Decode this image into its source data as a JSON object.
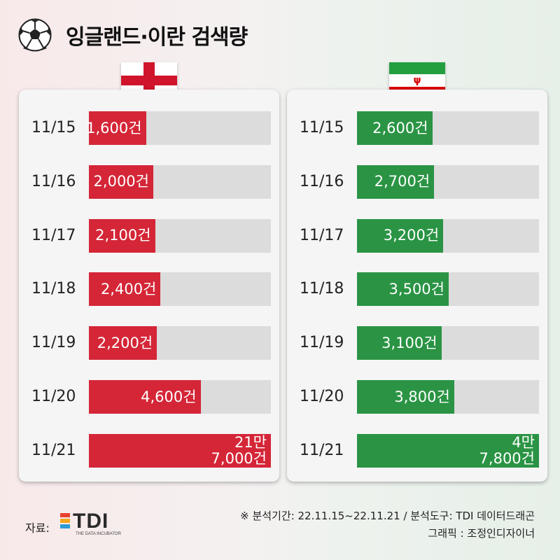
{
  "title": "잉글랜드·이란 검색량",
  "colors": {
    "england": "#d42637",
    "iran": "#2a9444",
    "track": "#dcdcdc"
  },
  "chart_data": [
    {
      "type": "bar",
      "orientation": "horizontal",
      "team": "england",
      "categories": [
        "11/15",
        "11/16",
        "11/17",
        "11/18",
        "11/19",
        "11/20",
        "11/21"
      ],
      "values": [
        1600,
        2000,
        2100,
        2400,
        2200,
        4600,
        217000
      ],
      "labels": [
        "1,600건",
        "2,000건",
        "2,100건",
        "2,400건",
        "2,200건",
        "4,600건",
        "21만\n7,000건"
      ],
      "xlim": [
        0,
        217000
      ]
    },
    {
      "type": "bar",
      "orientation": "horizontal",
      "team": "iran",
      "categories": [
        "11/15",
        "11/16",
        "11/17",
        "11/18",
        "11/19",
        "11/20",
        "11/21"
      ],
      "values": [
        2600,
        2700,
        3200,
        3500,
        3100,
        3800,
        47800
      ],
      "labels": [
        "2,600건",
        "2,700건",
        "3,200건",
        "3,500건",
        "3,100건",
        "3,800건",
        "4만\n7,800건"
      ],
      "xlim": [
        0,
        47800
      ]
    }
  ],
  "footer": {
    "source_label": "자료:",
    "source_logo": "TDI",
    "source_logo_tagline": "THE DATA INCUBATOR",
    "note_analysis": "※ 분석기간: 22.11.15~22.11.21 / 분석도구: TDI 데이터드래곤",
    "note_graphic": "그래픽 : 조정인디자이너"
  }
}
